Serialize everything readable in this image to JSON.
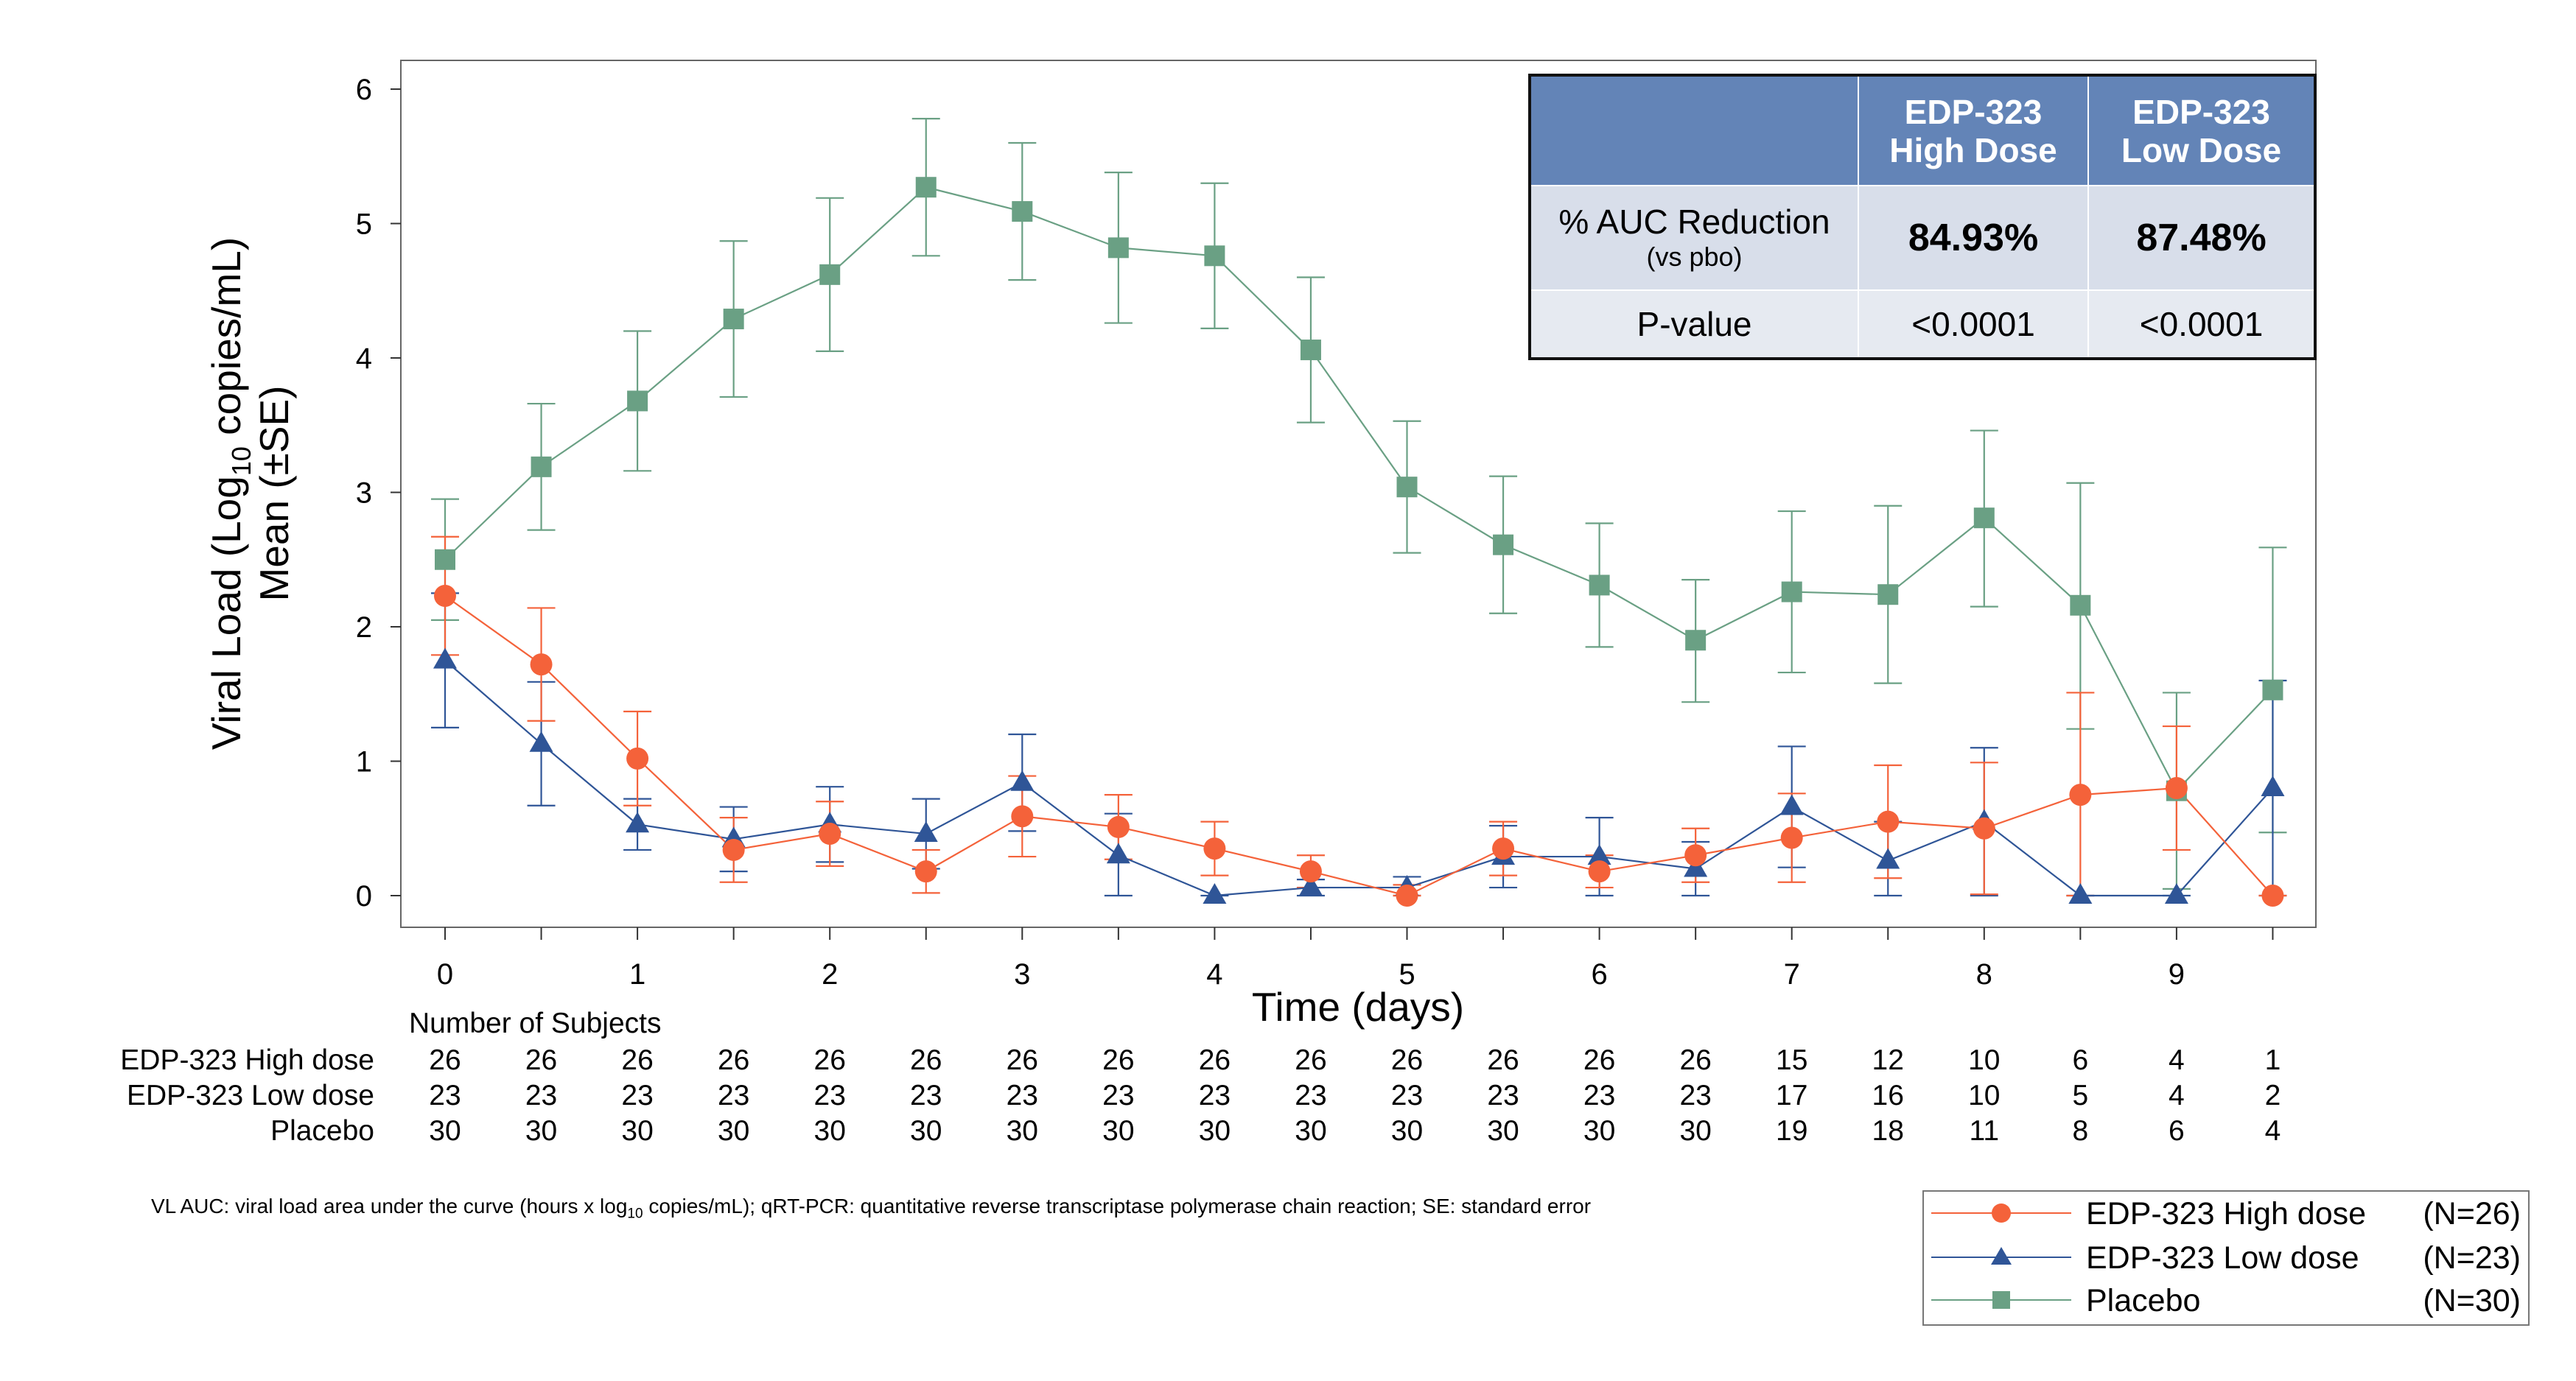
{
  "chart_data": {
    "type": "line",
    "xlabel": "Time (days)",
    "ylabel_line1_pre": "Viral Load (Log",
    "ylabel_line1_sub": "10",
    "ylabel_line1_post": " copies/mL)",
    "ylabel_line2": "Mean (±SE)",
    "xlim": [
      0,
      9.5
    ],
    "ylim": [
      0,
      6
    ],
    "x_ticks": [
      0,
      1,
      2,
      3,
      4,
      5,
      6,
      7,
      8,
      9
    ],
    "y_ticks": [
      0,
      1,
      2,
      3,
      4,
      5,
      6
    ],
    "x": [
      0,
      0.5,
      1,
      1.5,
      2,
      2.5,
      3,
      3.5,
      4,
      4.5,
      5,
      5.5,
      6,
      6.5,
      7,
      7.5,
      8,
      8.5,
      9,
      9.5
    ],
    "series": [
      {
        "name": "EDP-323 High dose",
        "color": "#f4623a",
        "marker": "circle",
        "values": [
          2.23,
          1.72,
          1.02,
          0.34,
          0.46,
          0.18,
          0.59,
          0.51,
          0.35,
          0.18,
          0.0,
          0.35,
          0.18,
          0.3,
          0.43,
          0.55,
          0.5,
          0.75,
          0.8,
          0.0
        ],
        "err_upper": [
          2.67,
          2.14,
          1.37,
          0.58,
          0.7,
          0.34,
          0.89,
          0.75,
          0.55,
          0.3,
          0.08,
          0.55,
          0.3,
          0.5,
          0.76,
          0.97,
          0.99,
          1.51,
          1.26,
          0.0
        ],
        "err_lower": [
          1.79,
          1.3,
          0.67,
          0.1,
          0.22,
          0.02,
          0.29,
          0.27,
          0.15,
          0.06,
          0.0,
          0.15,
          0.06,
          0.1,
          0.1,
          0.13,
          0.01,
          0.0,
          0.34,
          0.0
        ]
      },
      {
        "name": "EDP-323 Low dose",
        "color": "#2f5597",
        "marker": "triangle",
        "values": [
          1.75,
          1.13,
          0.53,
          0.42,
          0.53,
          0.46,
          0.84,
          0.3,
          0.0,
          0.06,
          0.06,
          0.29,
          0.29,
          0.2,
          0.66,
          0.26,
          0.55,
          0.0,
          0.0,
          0.8
        ],
        "err_upper": [
          2.25,
          1.59,
          0.72,
          0.66,
          0.81,
          0.72,
          1.2,
          0.61,
          0.0,
          0.12,
          0.14,
          0.52,
          0.58,
          0.4,
          1.11,
          0.55,
          1.1,
          0.0,
          0.0,
          1.6
        ],
        "err_lower": [
          1.25,
          0.67,
          0.34,
          0.18,
          0.25,
          0.2,
          0.48,
          0.0,
          0.0,
          0.0,
          0.0,
          0.06,
          0.0,
          0.0,
          0.21,
          0.0,
          0.0,
          0.0,
          0.0,
          0.0
        ]
      },
      {
        "name": "Placebo",
        "color": "#6aa084",
        "marker": "square",
        "values": [
          2.5,
          3.19,
          3.68,
          4.29,
          4.62,
          5.27,
          5.09,
          4.82,
          4.76,
          4.06,
          3.04,
          2.61,
          2.31,
          1.9,
          2.26,
          2.24,
          2.81,
          2.16,
          0.78,
          1.53
        ],
        "err_upper": [
          2.95,
          3.66,
          4.2,
          4.87,
          5.19,
          5.78,
          5.6,
          5.38,
          5.3,
          4.6,
          3.53,
          3.12,
          2.77,
          2.35,
          2.86,
          2.9,
          3.46,
          3.07,
          1.51,
          2.59
        ],
        "err_lower": [
          2.05,
          2.72,
          3.16,
          3.71,
          4.05,
          4.76,
          4.58,
          4.26,
          4.22,
          3.52,
          2.55,
          2.1,
          1.85,
          1.44,
          1.66,
          1.58,
          2.15,
          1.24,
          0.05,
          0.47
        ]
      }
    ]
  },
  "number_of_subjects": {
    "title": "Number of Subjects",
    "rows": [
      {
        "label": "EDP-323 High dose",
        "counts": [
          "26",
          "26",
          "26",
          "26",
          "26",
          "26",
          "26",
          "26",
          "26",
          "26",
          "26",
          "26",
          "26",
          "26",
          "15",
          "12",
          "10",
          "6",
          "4",
          "1"
        ]
      },
      {
        "label": "EDP-323 Low dose",
        "counts": [
          "23",
          "23",
          "23",
          "23",
          "23",
          "23",
          "23",
          "23",
          "23",
          "23",
          "23",
          "23",
          "23",
          "23",
          "17",
          "16",
          "10",
          "5",
          "4",
          "2"
        ]
      },
      {
        "label": "Placebo",
        "counts": [
          "30",
          "30",
          "30",
          "30",
          "30",
          "30",
          "30",
          "30",
          "30",
          "30",
          "30",
          "30",
          "30",
          "30",
          "19",
          "18",
          "11",
          "8",
          "6",
          "4"
        ]
      }
    ]
  },
  "auc_table": {
    "header_high_line1": "EDP-323",
    "header_high_line2": "High Dose",
    "header_low_line1": "EDP-323",
    "header_low_line2": "Low Dose",
    "row1_label": "% AUC Reduction",
    "row1_sublabel": "(vs pbo)",
    "row1_high": "84.93%",
    "row1_low": "87.48%",
    "row2_label": "P-value",
    "row2_high": "<0.0001",
    "row2_low": "<0.0001"
  },
  "footnote": {
    "pre": "VL AUC: viral load area under the curve (hours x log",
    "sub": "10",
    "post": " copies/mL); qRT-PCR: quantitative reverse transcriptase polymerase chain reaction; SE: standard error"
  },
  "legend": {
    "items": [
      {
        "label": "EDP-323 High dose",
        "n": "(N=26)"
      },
      {
        "label": "EDP-323 Low dose",
        "n": "(N=23)"
      },
      {
        "label": "Placebo",
        "n": "(N=30)"
      }
    ]
  }
}
